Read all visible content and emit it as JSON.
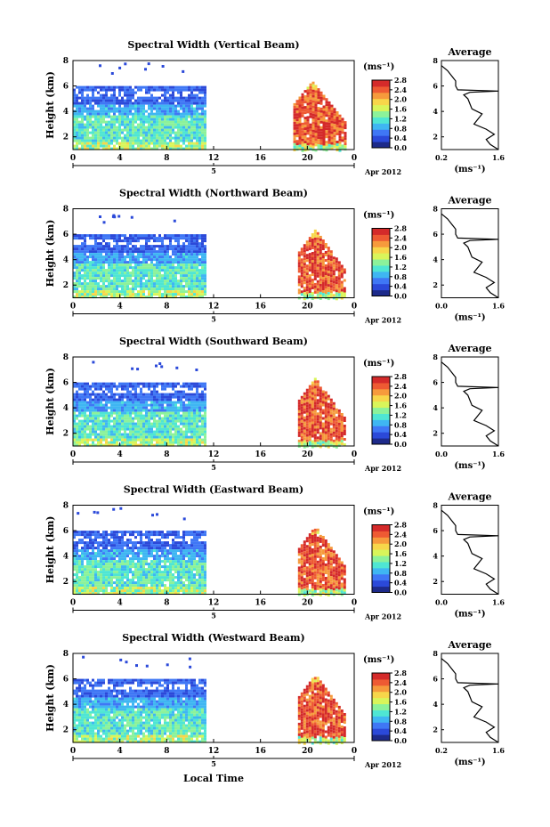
{
  "figure": {
    "xlabel": "Local Time",
    "date_label": "Apr 2012",
    "day_label": "5",
    "ylabel": "Height (km)",
    "colorbar_unit": "(ms⁻¹)",
    "avg_title": "Average",
    "avg_xlabel": "(ms⁻¹)"
  },
  "panels": [
    {
      "title": "Spectral Width (Vertical Beam)",
      "avg_xticks": [
        "0.2",
        "1.6"
      ]
    },
    {
      "title": "Spectral Width (Northward Beam)",
      "avg_xticks": [
        "0.0",
        "1.6"
      ]
    },
    {
      "title": "Spectral Width (Southward Beam)",
      "avg_xticks": [
        "0.0",
        "1.6"
      ]
    },
    {
      "title": "Spectral Width (Eastward Beam)",
      "avg_xticks": [
        "0.0",
        "1.6"
      ]
    },
    {
      "title": "Spectral Width (Westward Beam)",
      "avg_xticks": [
        "0.2",
        "1.6"
      ]
    }
  ],
  "chart_data": [
    {
      "type": "heatmap",
      "title": "Spectral Width (Vertical Beam)",
      "xlabel": "",
      "ylabel": "Height (km)",
      "xlim": [
        0,
        24
      ],
      "ylim": [
        1,
        8
      ],
      "xticks": [
        "0",
        "4",
        "8",
        "12",
        "16",
        "20",
        "0"
      ],
      "yticks": [
        "2",
        "4",
        "6",
        "8"
      ],
      "colorbar": {
        "ticks": [
          "0.0",
          "0.4",
          "0.8",
          "1.2",
          "1.6",
          "2.0",
          "2.4",
          "2.8"
        ],
        "range": [
          0,
          2.8
        ]
      },
      "segments": [
        {
          "x": [
            0,
            11.2
          ],
          "y": [
            1.0,
            6.0
          ],
          "approx_mean_width": 0.9
        },
        {
          "x": [
            18.8,
            23.2
          ],
          "y": [
            1.0,
            6.6
          ],
          "approx_mean_width": 2.4
        }
      ]
    },
    {
      "type": "heatmap",
      "title": "Spectral Width (Northward Beam)",
      "xlabel": "",
      "ylabel": "Height (km)",
      "xlim": [
        0,
        24
      ],
      "ylim": [
        1,
        8
      ],
      "xticks": [
        "0",
        "4",
        "8",
        "12",
        "16",
        "20",
        "0"
      ],
      "yticks": [
        "2",
        "4",
        "6",
        "8"
      ],
      "colorbar": {
        "ticks": [
          "0.0",
          "0.4",
          "0.8",
          "1.2",
          "1.6",
          "2.0",
          "2.4",
          "2.8"
        ],
        "range": [
          0,
          2.8
        ]
      },
      "segments": [
        {
          "x": [
            0,
            11.2
          ],
          "y": [
            1.0,
            6.0
          ],
          "approx_mean_width": 0.8
        },
        {
          "x": [
            19.2,
            23.2
          ],
          "y": [
            1.0,
            6.2
          ],
          "approx_mean_width": 2.3
        }
      ]
    },
    {
      "type": "heatmap",
      "title": "Spectral Width (Southward Beam)",
      "xlabel": "",
      "ylabel": "Height (km)",
      "xlim": [
        0,
        24
      ],
      "ylim": [
        1,
        8
      ],
      "xticks": [
        "0",
        "4",
        "8",
        "12",
        "16",
        "20",
        "0"
      ],
      "yticks": [
        "2",
        "4",
        "6",
        "8"
      ],
      "colorbar": {
        "ticks": [
          "0.0",
          "0.4",
          "0.8",
          "1.2",
          "1.6",
          "2.0",
          "2.4",
          "2.8"
        ],
        "range": [
          0,
          2.8
        ]
      },
      "segments": [
        {
          "x": [
            0,
            11.2
          ],
          "y": [
            1.0,
            6.0
          ],
          "approx_mean_width": 0.9
        },
        {
          "x": [
            19.2,
            23.2
          ],
          "y": [
            1.0,
            6.2
          ],
          "approx_mean_width": 2.3
        }
      ]
    },
    {
      "type": "heatmap",
      "title": "Spectral Width (Eastward Beam)",
      "xlabel": "",
      "ylabel": "Height (km)",
      "xlim": [
        0,
        24
      ],
      "ylim": [
        1,
        8
      ],
      "xticks": [
        "0",
        "4",
        "8",
        "12",
        "16",
        "20",
        "0"
      ],
      "yticks": [
        "2",
        "4",
        "6",
        "8"
      ],
      "colorbar": {
        "ticks": [
          "0.0",
          "0.4",
          "0.8",
          "1.2",
          "1.6",
          "2.0",
          "2.4",
          "2.8"
        ],
        "range": [
          0,
          2.8
        ]
      },
      "segments": [
        {
          "x": [
            0,
            11.2
          ],
          "y": [
            1.0,
            6.0
          ],
          "approx_mean_width": 0.8
        },
        {
          "x": [
            19.2,
            23.2
          ],
          "y": [
            1.0,
            6.2
          ],
          "approx_mean_width": 2.3
        }
      ]
    },
    {
      "type": "heatmap",
      "title": "Spectral Width (Westward Beam)",
      "xlabel": "Local Time",
      "ylabel": "Height (km)",
      "xlim": [
        0,
        24
      ],
      "ylim": [
        1,
        8
      ],
      "xticks": [
        "0",
        "4",
        "8",
        "12",
        "16",
        "20",
        "0"
      ],
      "yticks": [
        "2",
        "4",
        "6",
        "8"
      ],
      "colorbar": {
        "ticks": [
          "0.0",
          "0.4",
          "0.8",
          "1.2",
          "1.6",
          "2.0",
          "2.4",
          "2.8"
        ],
        "range": [
          0,
          2.8
        ]
      },
      "segments": [
        {
          "x": [
            0,
            11.2
          ],
          "y": [
            1.0,
            6.0
          ],
          "approx_mean_width": 0.9
        },
        {
          "x": [
            19.2,
            23.2
          ],
          "y": [
            1.0,
            6.2
          ],
          "approx_mean_width": 2.3
        }
      ]
    },
    {
      "type": "line",
      "title": "Average",
      "xlabel": "(ms⁻¹)",
      "ylabel": "",
      "xlim": [
        0.2,
        1.6
      ],
      "ylim": [
        1,
        8
      ],
      "series": [
        {
          "x": [
            1.6,
            1.4,
            1.3,
            1.5,
            1.3,
            1.0,
            1.1,
            1.2,
            0.95,
            0.9,
            0.85,
            0.75,
            0.9,
            1.6,
            0.6,
            0.55,
            0.55,
            0.45,
            0.35,
            0.2
          ],
          "y": [
            1.0,
            1.4,
            1.8,
            2.2,
            2.6,
            3.0,
            3.4,
            3.8,
            4.2,
            4.6,
            5.0,
            5.3,
            5.5,
            5.6,
            5.7,
            6.0,
            6.4,
            6.8,
            7.2,
            7.6
          ]
        }
      ]
    }
  ],
  "colors": {
    "colorscale": [
      "#1d2a8a",
      "#2b49d9",
      "#3f77f5",
      "#3fb6f2",
      "#4fe6d3",
      "#8cf29a",
      "#d9f55a",
      "#f7d64a",
      "#f69a3c",
      "#ee5a33",
      "#d42a2a"
    ],
    "axis": "#000000"
  }
}
